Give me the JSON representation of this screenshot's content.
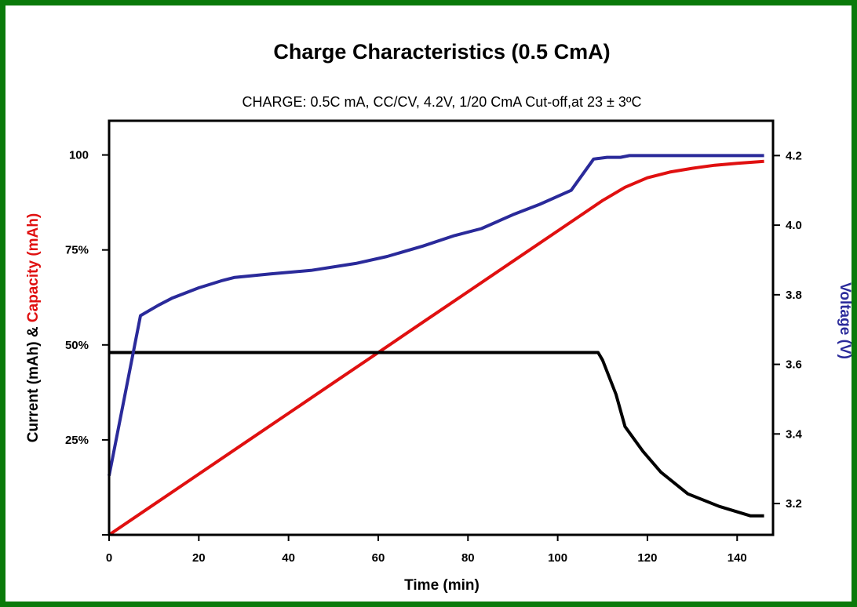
{
  "chart_data": {
    "type": "line",
    "title": "Charge Characteristics (0.5 CmA)",
    "subtitle": "CHARGE: 0.5C mA, CC/CV, 4.2V, 1/20 CmA Cut-off,at 23 ± 3ºC",
    "xlabel": "Time (min)",
    "ylabel_left_part1": "Current (mAh) & ",
    "ylabel_left_part2": "Capacity (mAh)",
    "ylabel_right": "Voltage (V)",
    "x_ticks": [
      "0",
      "20",
      "40",
      "60",
      "80",
      "100",
      "120",
      "140"
    ],
    "y_left_ticks": [
      "25%",
      "50%",
      "75%",
      "100"
    ],
    "y_right_ticks": [
      "3.2",
      "3.4",
      "3.6",
      "3.8",
      "4.0",
      "4.2"
    ],
    "xlim": [
      0,
      148
    ],
    "ylim_left": [
      0,
      109
    ],
    "ylim_right": [
      3.11,
      4.3
    ],
    "grid": false,
    "series": [
      {
        "axis": "left",
        "color": "#e01010",
        "x": [
          0,
          10,
          20,
          30,
          40,
          50,
          60,
          70,
          80,
          90,
          100,
          105,
          110,
          115,
          120,
          125,
          130,
          135,
          140,
          146
        ],
        "y": [
          0,
          8,
          16,
          24,
          32,
          40,
          48,
          56,
          64,
          72,
          80,
          84,
          88,
          91.5,
          94,
          95.5,
          96.5,
          97.3,
          97.8,
          98.3
        ]
      },
      {
        "axis": "left",
        "color": "#000000",
        "x": [
          0,
          109,
          110,
          113,
          115,
          119,
          123,
          129,
          136,
          143,
          146
        ],
        "y": [
          48,
          48,
          46,
          37,
          28.5,
          22,
          16.5,
          10.8,
          7.5,
          5,
          5
        ]
      },
      {
        "axis": "right",
        "color": "#2a2a9a",
        "x": [
          0,
          7,
          11,
          14,
          20,
          25,
          28,
          36,
          45,
          55,
          62,
          70,
          77,
          83,
          90,
          96,
          103,
          108,
          111,
          114,
          116,
          146
        ],
        "y": [
          3.28,
          3.74,
          3.77,
          3.79,
          3.82,
          3.84,
          3.85,
          3.86,
          3.87,
          3.89,
          3.91,
          3.94,
          3.97,
          3.99,
          4.03,
          4.06,
          4.1,
          4.19,
          4.195,
          4.195,
          4.2,
          4.2
        ]
      }
    ]
  }
}
